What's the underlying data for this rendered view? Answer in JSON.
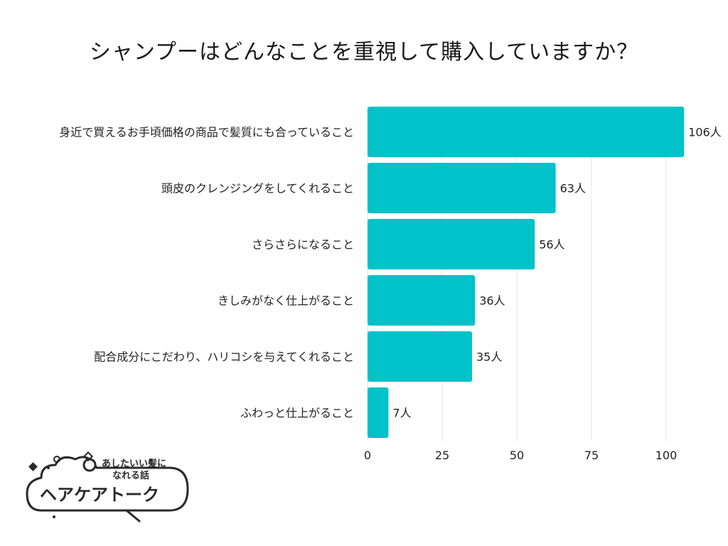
{
  "title": "シャンプーはどんなことを重視して購入していますか？",
  "chart_data": {
    "type": "bar",
    "orientation": "horizontal",
    "title": "シャンプーはどんなことを重視して購入していますか？",
    "categories": [
      "身近で買えるお手頃価格の商品で髪質にも合っていること",
      "頭皮のクレンジングをしてくれること",
      "さらさらになること",
      "きしみがなく仕上がること",
      "配合成分にこだわり、ハリコシを与えてくれること",
      "ふわっと仕上がること"
    ],
    "values": [
      106,
      63,
      56,
      36,
      35,
      7
    ],
    "value_labels": [
      "106人",
      "63人",
      "56人",
      "36人",
      "35人",
      "7人"
    ],
    "xticks": [
      "0",
      "25",
      "50",
      "75",
      "100"
    ],
    "xlim": [
      0,
      106
    ],
    "grid": true,
    "bar_color": "#00c2c9"
  },
  "logo": {
    "line1": "あしたいい髪に",
    "line2": "なれる話",
    "name": "ヘアケアトーク"
  }
}
